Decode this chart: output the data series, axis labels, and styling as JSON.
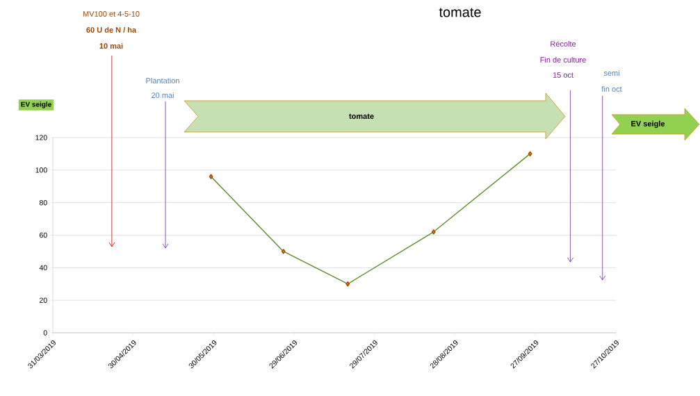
{
  "chart_data": {
    "type": "line",
    "title": "tomate",
    "x": [
      "2019-05-29",
      "2019-06-25",
      "2019-07-19",
      "2019-08-20",
      "2019-09-25"
    ],
    "series": [
      {
        "color": "#5b8c2a",
        "values": [
          96,
          50,
          30,
          62,
          110
        ]
      }
    ],
    "marker": "diamond",
    "grid": "y",
    "xlim": [
      "2019-03-31",
      "2019-10-27"
    ],
    "xticks": [
      {
        "value": "2019-03-31",
        "label": "31/03/2019"
      },
      {
        "value": "2019-04-30",
        "label": "30/04/2019"
      },
      {
        "value": "2019-05-30",
        "label": "30/05/2019"
      },
      {
        "value": "2019-06-29",
        "label": "29/06/2019"
      },
      {
        "value": "2019-07-29",
        "label": "29/07/2019"
      },
      {
        "value": "2019-08-28",
        "label": "28/08/2019"
      },
      {
        "value": "2019-09-27",
        "label": "27/09/2019"
      },
      {
        "value": "2019-10-27",
        "label": "27/10/2019"
      }
    ],
    "ylim": [
      0,
      120
    ],
    "yticks": [
      0,
      20,
      40,
      60,
      80,
      100,
      120
    ],
    "ref_lines": [
      {
        "axis": "x",
        "value": "2019-04-22",
        "label": "10 mai",
        "color": "#c00000"
      },
      {
        "axis": "x",
        "value": "2019-05-12",
        "label": "20 mai",
        "color": "#7030a0"
      },
      {
        "axis": "x",
        "value": "2019-10-10",
        "label": "15 oct",
        "color": "#7030a0"
      },
      {
        "axis": "x",
        "value": "2019-10-22",
        "label": "fin oct",
        "color": "#7030a0"
      }
    ],
    "annotations": [
      "MV100 et 4-5-10",
      "60 U de N / ha",
      "Plantation",
      "Récolte",
      "Fin de culture",
      "semi",
      "tomate",
      "EV seigle",
      "EV seigle"
    ]
  }
}
